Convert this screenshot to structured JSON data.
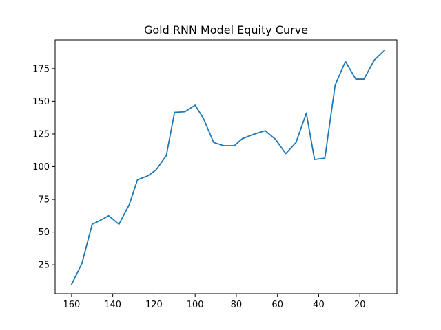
{
  "chart_data": {
    "type": "line",
    "title": "Gold RNN Model Equity Curve",
    "xlabel": "",
    "ylabel": "",
    "x_reversed": true,
    "xlim": [
      168,
      2
    ],
    "ylim": [
      3,
      197
    ],
    "x_ticks": [
      160,
      140,
      120,
      100,
      80,
      60,
      40,
      20
    ],
    "y_ticks": [
      25,
      50,
      75,
      100,
      125,
      150,
      175
    ],
    "grid": false,
    "series": [
      {
        "color": "#1f77b4",
        "x": [
          160,
          155,
          150,
          146,
          142,
          137,
          132,
          128,
          123,
          119,
          114,
          110,
          105,
          100,
          96,
          91,
          86,
          81,
          77,
          72,
          66,
          61,
          56,
          51,
          46,
          42,
          37,
          32,
          27,
          22,
          18,
          13,
          8
        ],
        "y": [
          10,
          26,
          56,
          59,
          62.5,
          56,
          71,
          90,
          93,
          97.5,
          108.5,
          141.5,
          142,
          147,
          137,
          118.5,
          116,
          116,
          121.5,
          124.5,
          127.5,
          121,
          110,
          118.5,
          141,
          105.5,
          106.5,
          162.5,
          180.5,
          167,
          167,
          181.5,
          189
        ]
      }
    ]
  }
}
